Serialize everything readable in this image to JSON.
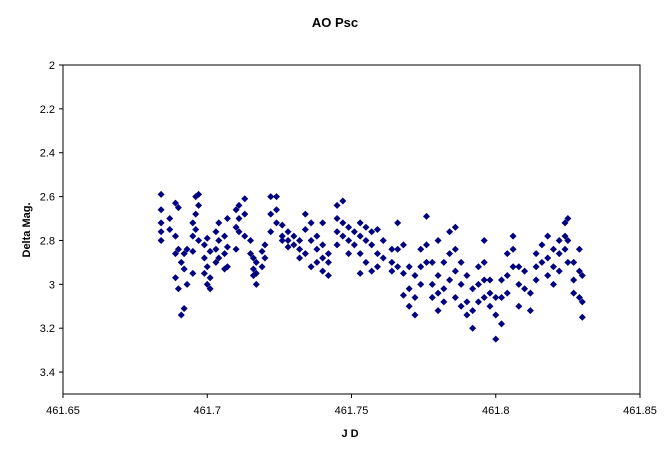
{
  "chart_data": {
    "type": "scatter",
    "title": "AO Psc",
    "x_label": "J D",
    "y_label": "Delta Mag.",
    "color": "#000080",
    "xlim": [
      461.65,
      461.85
    ],
    "xticks": [
      461.65,
      461.7,
      461.75,
      461.8,
      461.85
    ],
    "ylim": [
      2,
      3.5
    ],
    "yticks": [
      2,
      2.2,
      2.4,
      2.6,
      2.8,
      3,
      3.2,
      3.4
    ],
    "y_inverted": true,
    "x": [
      461.684,
      461.684,
      461.684,
      461.684,
      461.684,
      461.687,
      461.687,
      461.689,
      461.689,
      461.689,
      461.689,
      461.69,
      461.69,
      461.69,
      461.691,
      461.691,
      461.692,
      461.692,
      461.692,
      461.693,
      461.693,
      461.695,
      461.695,
      461.695,
      461.695,
      461.696,
      461.696,
      461.696,
      461.697,
      461.697,
      461.697,
      461.699,
      461.699,
      461.699,
      461.7,
      461.7,
      461.7,
      461.701,
      461.701,
      461.701,
      461.703,
      461.703,
      461.703,
      461.704,
      461.704,
      461.704,
      461.706,
      461.706,
      461.706,
      461.707,
      461.707,
      461.707,
      461.71,
      461.71,
      461.71,
      461.711,
      461.711,
      461.711,
      461.713,
      461.713,
      461.713,
      461.715,
      461.715,
      461.716,
      461.716,
      461.716,
      461.717,
      461.717,
      461.717,
      461.719,
      461.719,
      461.72,
      461.72,
      461.722,
      461.722,
      461.722,
      461.724,
      461.724,
      461.724,
      461.726,
      461.726,
      461.726,
      461.728,
      461.728,
      461.728,
      461.73,
      461.73,
      461.732,
      461.732,
      461.732,
      461.734,
      461.734,
      461.734,
      461.736,
      461.736,
      461.736,
      461.738,
      461.738,
      461.738,
      461.74,
      461.74,
      461.74,
      461.74,
      461.742,
      461.742,
      461.742,
      461.745,
      461.745,
      461.745,
      461.745,
      461.747,
      461.747,
      461.747,
      461.749,
      461.749,
      461.749,
      461.751,
      461.751,
      461.753,
      461.753,
      461.753,
      461.753,
      461.755,
      461.755,
      461.755,
      461.757,
      461.757,
      461.757,
      461.759,
      461.759,
      461.759,
      461.761,
      461.761,
      461.764,
      461.764,
      461.764,
      461.766,
      461.766,
      461.766,
      461.768,
      461.768,
      461.768,
      461.77,
      461.77,
      461.77,
      461.772,
      461.772,
      461.772,
      461.774,
      461.774,
      461.774,
      461.776,
      461.776,
      461.776,
      461.778,
      461.778,
      461.778,
      461.78,
      461.78,
      461.78,
      461.78,
      461.782,
      461.782,
      461.782,
      461.784,
      461.784,
      461.784,
      461.786,
      461.786,
      461.786,
      461.786,
      461.788,
      461.788,
      461.788,
      461.79,
      461.79,
      461.79,
      461.792,
      461.792,
      461.792,
      461.794,
      461.794,
      461.794,
      461.796,
      461.796,
      461.796,
      461.796,
      461.798,
      461.798,
      461.798,
      461.8,
      461.8,
      461.8,
      461.802,
      461.802,
      461.802,
      461.804,
      461.804,
      461.804,
      461.806,
      461.806,
      461.806,
      461.808,
      461.808,
      461.808,
      461.81,
      461.81,
      461.812,
      461.812,
      461.814,
      461.814,
      461.814,
      461.816,
      461.816,
      461.818,
      461.818,
      461.818,
      461.82,
      461.82,
      461.82,
      461.822,
      461.822,
      461.822,
      461.824,
      461.824,
      461.824,
      461.825,
      461.825,
      461.825,
      461.827,
      461.827,
      461.827,
      461.829,
      461.829,
      461.829,
      461.83,
      461.83,
      461.83
    ],
    "values": [
      2.59,
      2.66,
      2.72,
      2.76,
      2.8,
      2.7,
      2.75,
      2.63,
      2.78,
      2.86,
      2.97,
      2.65,
      2.84,
      3.02,
      3.14,
      2.9,
      3.11,
      2.86,
      2.93,
      3.0,
      2.84,
      2.72,
      2.78,
      2.85,
      2.95,
      2.6,
      2.68,
      2.75,
      2.59,
      2.64,
      2.8,
      2.88,
      2.95,
      2.82,
      2.79,
      2.92,
      3.0,
      2.85,
      2.97,
      3.02,
      2.76,
      2.84,
      2.9,
      2.72,
      2.8,
      2.88,
      2.78,
      2.86,
      2.93,
      2.7,
      2.83,
      2.92,
      2.74,
      2.66,
      2.84,
      2.64,
      2.7,
      2.76,
      2.61,
      2.68,
      2.78,
      2.8,
      2.86,
      2.88,
      2.93,
      2.96,
      2.9,
      2.95,
      3.0,
      2.85,
      2.92,
      2.82,
      2.88,
      2.6,
      2.68,
      2.76,
      2.6,
      2.66,
      2.72,
      2.73,
      2.78,
      2.8,
      2.76,
      2.8,
      2.83,
      2.78,
      2.82,
      2.8,
      2.84,
      2.88,
      2.68,
      2.75,
      2.86,
      2.72,
      2.8,
      2.92,
      2.78,
      2.84,
      2.9,
      2.72,
      2.82,
      2.88,
      2.94,
      2.86,
      2.9,
      2.96,
      2.64,
      2.7,
      2.76,
      2.82,
      2.62,
      2.72,
      2.78,
      2.74,
      2.8,
      2.86,
      2.76,
      2.82,
      2.72,
      2.78,
      2.86,
      2.95,
      2.74,
      2.8,
      2.9,
      2.76,
      2.82,
      2.94,
      2.75,
      2.86,
      2.92,
      2.8,
      2.88,
      2.84,
      2.9,
      2.94,
      2.72,
      2.84,
      2.92,
      2.82,
      2.95,
      3.05,
      2.92,
      3.02,
      3.1,
      2.96,
      3.06,
      3.14,
      2.84,
      2.92,
      3.0,
      2.69,
      2.82,
      2.9,
      2.9,
      3.0,
      3.06,
      2.8,
      2.96,
      3.04,
      3.12,
      2.9,
      3.02,
      3.08,
      2.76,
      2.86,
      2.98,
      2.74,
      2.84,
      2.94,
      3.06,
      2.9,
      3.0,
      3.1,
      2.96,
      3.08,
      3.14,
      3.02,
      3.12,
      3.2,
      2.92,
      3.0,
      3.08,
      2.8,
      2.9,
      2.98,
      3.06,
      2.98,
      3.04,
      3.1,
      3.06,
      3.14,
      3.25,
      2.98,
      3.06,
      3.18,
      2.86,
      2.96,
      3.04,
      2.78,
      2.84,
      2.92,
      2.92,
      3.0,
      3.1,
      2.94,
      3.02,
      3.04,
      3.12,
      2.86,
      2.92,
      2.98,
      2.82,
      2.9,
      2.78,
      2.88,
      2.96,
      2.84,
      2.92,
      3.0,
      2.8,
      2.86,
      2.94,
      2.72,
      2.78,
      2.84,
      2.7,
      2.8,
      2.9,
      2.9,
      2.98,
      3.04,
      2.84,
      2.94,
      3.06,
      2.96,
      3.08,
      3.15
    ]
  }
}
